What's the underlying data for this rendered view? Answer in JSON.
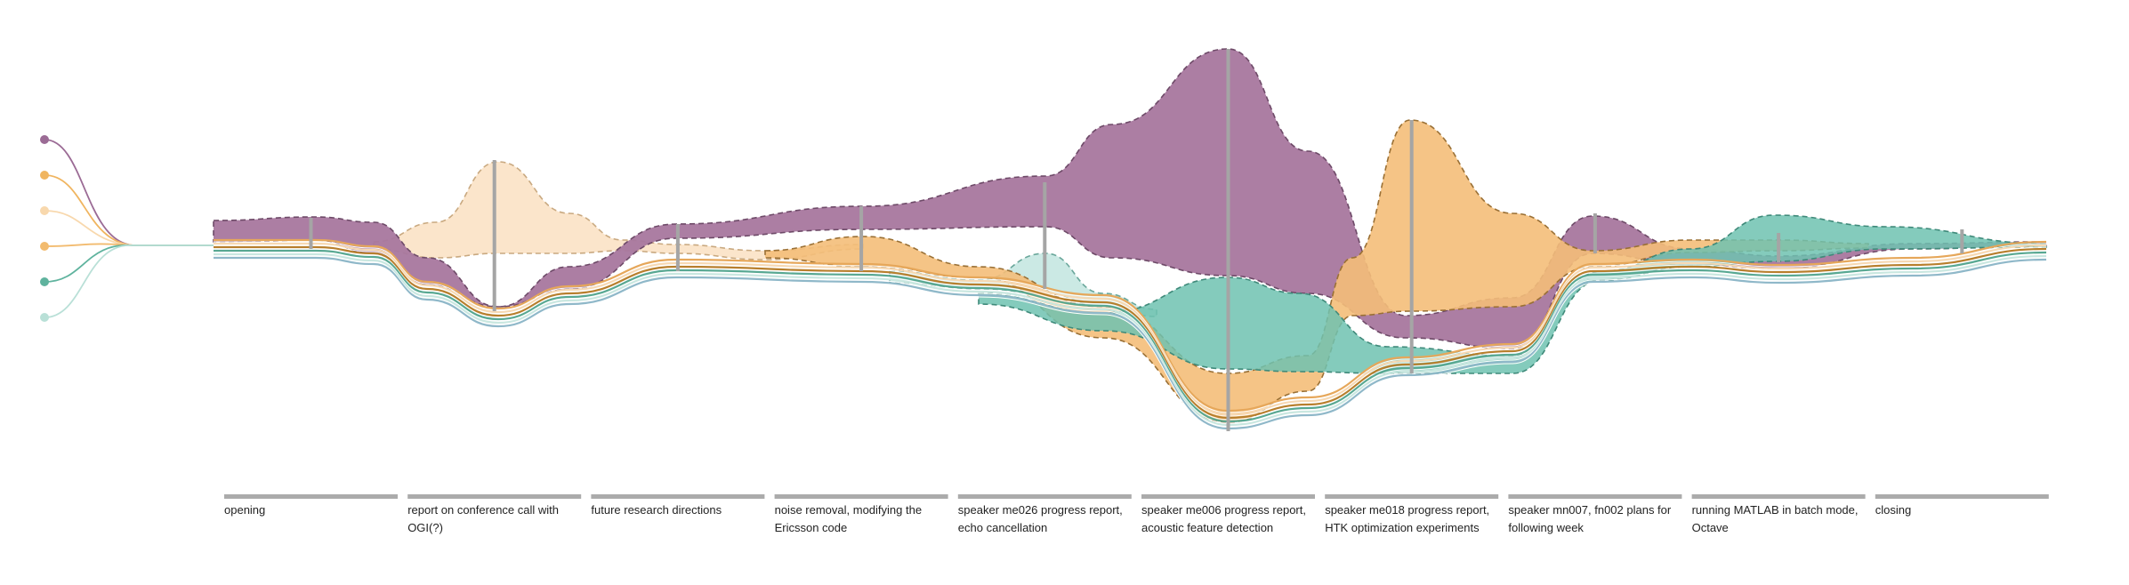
{
  "colors": {
    "purple": "#a8779e",
    "orange": "#f4be79",
    "cream": "#fae0c2",
    "teal": "#6fc2b0",
    "mint": "#c2e5df",
    "bar": "#ababab"
  },
  "speakers": [
    {
      "color": "#9b6b95"
    },
    {
      "color": "#f0b560"
    },
    {
      "color": "#f8d8ad"
    },
    {
      "color": "#f2bb6f"
    },
    {
      "color": "#5fb39e"
    },
    {
      "color": "#b9e0d7"
    }
  ],
  "topics": [
    {
      "line1": "opening",
      "line2": ""
    },
    {
      "line1": "report on conference call with",
      "line2": "OGI(?)"
    },
    {
      "line1": "future research directions",
      "line2": ""
    },
    {
      "line1": "noise removal, modifying the",
      "line2": "Ericsson code"
    },
    {
      "line1": "speaker me026 progress report,",
      "line2": "echo cancellation"
    },
    {
      "line1": "speaker me006 progress report,",
      "line2": "acoustic feature detection"
    },
    {
      "line1": "speaker me018 progress report,",
      "line2": "HTK optimization experiments"
    },
    {
      "line1": "speaker mn007, fn002 plans for",
      "line2": "following week"
    },
    {
      "line1": "running MATLAB in batch mode,",
      "line2": "Octave"
    },
    {
      "line1": "closing",
      "line2": ""
    }
  ]
}
